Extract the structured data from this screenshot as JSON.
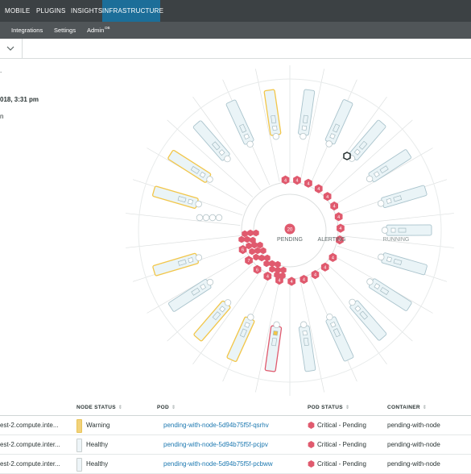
{
  "top_nav": {
    "tabs": [
      {
        "label": "MOBILE",
        "active": false
      },
      {
        "label": "PLUGINS",
        "active": false
      },
      {
        "label": "INSIGHTS",
        "active": false
      },
      {
        "label": "INFRASTRUCTURE",
        "active": true
      }
    ]
  },
  "sub_nav": {
    "items": [
      "Integrations",
      "Settings",
      "Admin"
    ],
    "admin_badge": "DB"
  },
  "left_panel": {
    "frag_1": ".",
    "timestamp_fragment": "018, 3:31 pm",
    "frag_2": "n"
  },
  "cluster_viz": {
    "center_count": "20",
    "ring_labels": {
      "pending": "PENDING",
      "alerting": "ALERTING",
      "running": "RUNNING"
    },
    "hex_counts": [
      "4",
      "4",
      "4",
      "4",
      "4",
      "4",
      "4",
      "4",
      "4",
      "6",
      "7",
      "6",
      "4",
      "4",
      "4",
      "4",
      "4",
      "4",
      "4"
    ],
    "colors": {
      "critical": "#e05a6e",
      "warning_border": "#f2c649",
      "alert_border": "#e05a6e",
      "node_fill": "#eaf4f7",
      "node_border": "#a9c3cc",
      "spoke": "#dcdfdf"
    }
  },
  "table": {
    "columns": [
      "NODE STATUS",
      "POD",
      "POD STATUS",
      "CONTAINER"
    ],
    "rows": [
      {
        "host": "est-2.compute.inte...",
        "node_status": "Warning",
        "pod": "pending-with-node-5d94b75f5f-qsrhv",
        "pod_status": "Critical - Pending",
        "container": "pending-with-node",
        "swatch": "#f2d27a"
      },
      {
        "host": "est-2.compute.inter...",
        "node_status": "Healthy",
        "pod": "pending-with-node-5d94b75f5f-pcjpv",
        "pod_status": "Critical - Pending",
        "container": "pending-with-node",
        "swatch": "#eef5f8"
      },
      {
        "host": "est-2.compute.inter...",
        "node_status": "Healthy",
        "pod": "pending-with-node-5d94b75f5f-pcbww",
        "pod_status": "Critical - Pending",
        "container": "pending-with-node",
        "swatch": "#eef5f8"
      }
    ]
  }
}
